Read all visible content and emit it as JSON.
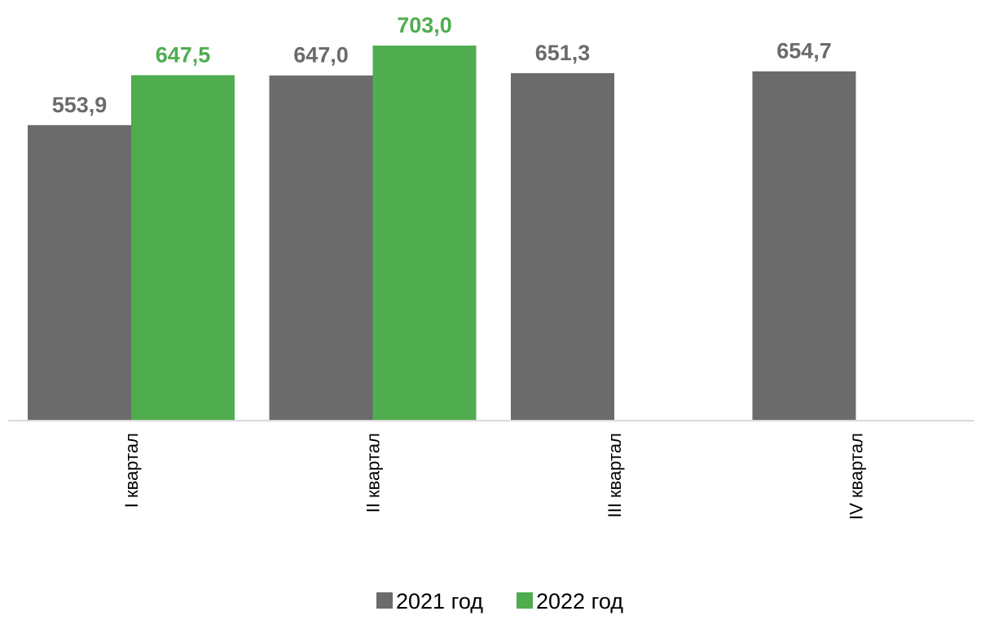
{
  "chart_data": {
    "type": "bar",
    "categories": [
      "I квартал",
      "II квартал",
      "III квартал",
      "IV квартал"
    ],
    "series": [
      {
        "name": "2021 год",
        "color": "#6b6b6b",
        "values": [
          553.9,
          647.0,
          651.3,
          654.7
        ],
        "labels": [
          "553,9",
          "647,0",
          "651,3",
          "654,7"
        ]
      },
      {
        "name": "2022 год",
        "color": "#4fad4f",
        "values": [
          647.5,
          703.0,
          null,
          null
        ],
        "labels": [
          "647,5",
          "703,0",
          null,
          null
        ]
      }
    ],
    "ylim": [
      0,
      703.0
    ],
    "grid": false,
    "y_axis_visible": false,
    "legend_position": "bottom-center",
    "baseline_color": "#d9d9d9"
  }
}
